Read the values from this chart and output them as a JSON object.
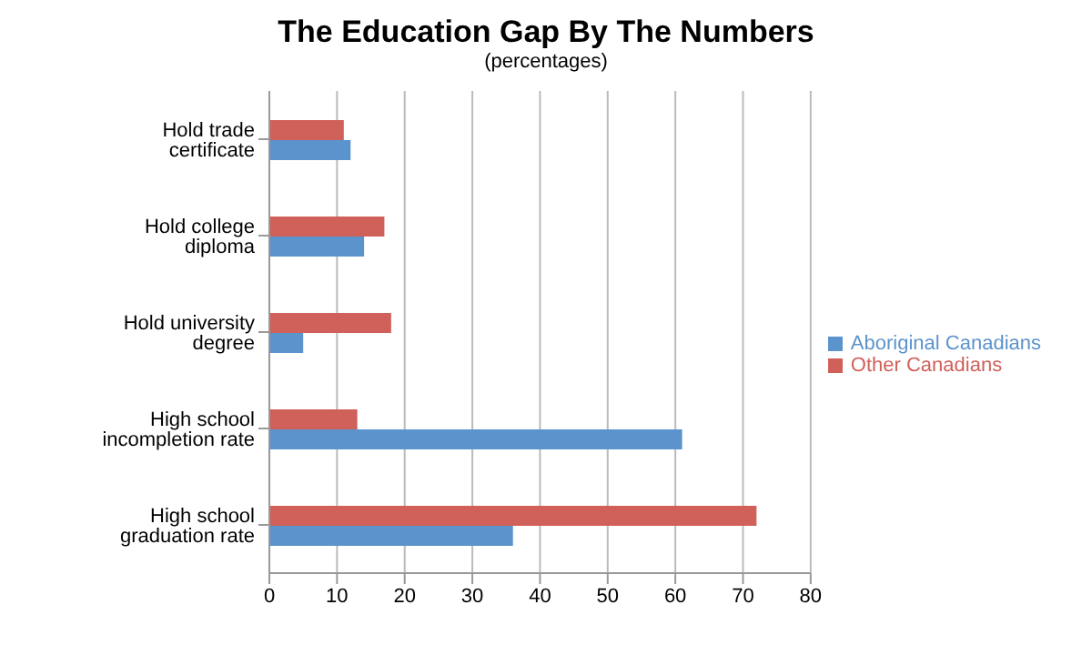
{
  "chart_data": {
    "type": "bar",
    "orientation": "horizontal",
    "title": "The Education Gap By The Numbers",
    "subtitle": "(percentages)",
    "categories": [
      "Hold trade certificate",
      "Hold college diploma",
      "Hold university degree",
      "High school incompletion rate",
      "High school graduation rate"
    ],
    "series": [
      {
        "name": "Other Canadians",
        "color": "#d0605a",
        "values": [
          11,
          17,
          18,
          13,
          72
        ]
      },
      {
        "name": "Aboriginal Canadians",
        "color": "#5b93cc",
        "values": [
          12,
          14,
          5,
          61,
          36
        ]
      }
    ],
    "xlim": [
      0,
      80
    ],
    "xticks": [
      0,
      10,
      20,
      30,
      40,
      50,
      60,
      70,
      80
    ],
    "grid": "x",
    "legend": "right"
  }
}
